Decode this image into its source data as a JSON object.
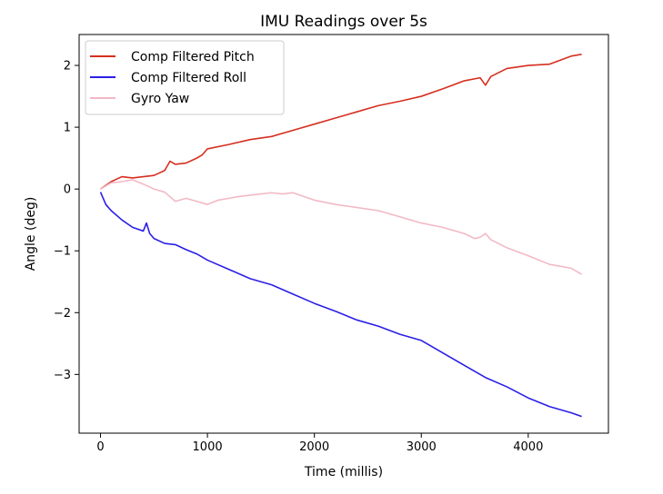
{
  "chart_data": {
    "type": "line",
    "title": "IMU Readings over 5s",
    "xlabel": "Time (millis)",
    "ylabel": "Angle (deg)",
    "xlim": [
      -200,
      4750
    ],
    "ylim": [
      -3.95,
      2.5
    ],
    "xticks": [
      0,
      1000,
      2000,
      3000,
      4000
    ],
    "yticks": [
      2,
      1,
      0,
      -1,
      -2,
      -3
    ],
    "xtick_labels": [
      "0",
      "1000",
      "2000",
      "3000",
      "4000"
    ],
    "ytick_labels": [
      "2",
      "1",
      "0",
      "−1",
      "−2",
      "−3"
    ],
    "grid": false,
    "legend_position": "top-left",
    "series": [
      {
        "name": "Comp Filtered Pitch",
        "color": "#d62f1f",
        "x": [
          0,
          100,
          200,
          300,
          400,
          500,
          600,
          650,
          700,
          800,
          900,
          950,
          1000,
          1200,
          1400,
          1600,
          1800,
          2000,
          2200,
          2400,
          2600,
          2800,
          3000,
          3200,
          3400,
          3550,
          3600,
          3650,
          3800,
          4000,
          4200,
          4400,
          4500
        ],
        "y": [
          0.0,
          0.12,
          0.2,
          0.18,
          0.2,
          0.22,
          0.3,
          0.45,
          0.4,
          0.42,
          0.5,
          0.55,
          0.65,
          0.72,
          0.8,
          0.85,
          0.95,
          1.05,
          1.15,
          1.25,
          1.35,
          1.42,
          1.5,
          1.62,
          1.75,
          1.8,
          1.68,
          1.82,
          1.95,
          2.0,
          2.02,
          2.15,
          2.18
        ]
      },
      {
        "name": "Comp Filtered Roll",
        "color": "#2b1fe6",
        "x": [
          0,
          50,
          100,
          200,
          300,
          400,
          430,
          460,
          500,
          600,
          700,
          800,
          900,
          1000,
          1200,
          1400,
          1600,
          1800,
          2000,
          2200,
          2400,
          2600,
          2800,
          3000,
          3200,
          3400,
          3600,
          3800,
          4000,
          4200,
          4400,
          4500
        ],
        "y": [
          -0.05,
          -0.25,
          -0.35,
          -0.5,
          -0.62,
          -0.68,
          -0.55,
          -0.72,
          -0.8,
          -0.88,
          -0.9,
          -0.98,
          -1.05,
          -1.15,
          -1.3,
          -1.45,
          -1.55,
          -1.7,
          -1.85,
          -1.98,
          -2.12,
          -2.22,
          -2.35,
          -2.45,
          -2.65,
          -2.85,
          -3.05,
          -3.2,
          -3.38,
          -3.52,
          -3.62,
          -3.68
        ]
      },
      {
        "name": "Gyro Yaw",
        "color": "#f2b9c5",
        "x": [
          0,
          100,
          200,
          300,
          400,
          500,
          600,
          700,
          800,
          900,
          1000,
          1100,
          1200,
          1300,
          1400,
          1500,
          1600,
          1700,
          1800,
          1900,
          2000,
          2200,
          2400,
          2600,
          2800,
          3000,
          3200,
          3400,
          3500,
          3550,
          3600,
          3650,
          3800,
          4000,
          4200,
          4400,
          4500
        ],
        "y": [
          0.0,
          0.1,
          0.12,
          0.15,
          0.08,
          0.0,
          -0.05,
          -0.2,
          -0.15,
          -0.2,
          -0.25,
          -0.18,
          -0.15,
          -0.12,
          -0.1,
          -0.08,
          -0.06,
          -0.08,
          -0.06,
          -0.12,
          -0.18,
          -0.25,
          -0.3,
          -0.35,
          -0.45,
          -0.55,
          -0.62,
          -0.72,
          -0.8,
          -0.78,
          -0.72,
          -0.82,
          -0.95,
          -1.08,
          -1.22,
          -1.28,
          -1.38
        ]
      }
    ]
  }
}
